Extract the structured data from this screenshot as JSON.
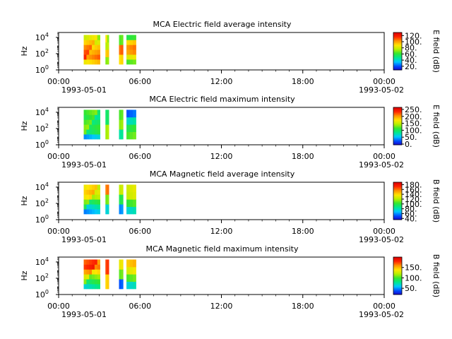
{
  "time_ticks": [
    "00:00",
    "06:00",
    "12:00",
    "18:00",
    "00:00"
  ],
  "date_start": "1993-05-01",
  "date_end": "1993-05-02",
  "colormap": [
    "#1a00c8",
    "#0050ff",
    "#00c8ff",
    "#00e890",
    "#32e632",
    "#b4f000",
    "#ffe600",
    "#ff9600",
    "#ff2800",
    "#dc0000"
  ],
  "chart_data": [
    {
      "type": "heatmap",
      "title": "MCA  Electric field average intensity",
      "ylabel": "Hz",
      "xlim": [
        "00:00",
        "24:00"
      ],
      "ylim": [
        1,
        40000
      ],
      "yscale": "log",
      "yticks": [
        "10^0",
        "10^2",
        "10^4"
      ],
      "colorbar_label": "E field (dB)",
      "colorbar_ticks": [
        "20.",
        "40.",
        "60.",
        "80.",
        "100.",
        "120."
      ],
      "zlim": [
        8,
        130
      ],
      "data_intervals_hours": [
        [
          1.85,
          3.05
        ],
        [
          3.45,
          3.7
        ],
        [
          4.45,
          4.75
        ],
        [
          5.0,
          5.7
        ]
      ],
      "freq_range_hz": [
        5,
        20000
      ],
      "approx_levels_db": [
        [
          95,
          110,
          105,
          100,
          90,
          80
        ],
        [
          75,
          100,
          85,
          80
        ],
        [
          90,
          110,
          70
        ],
        [
          60,
          80,
          100,
          105,
          95,
          65
        ]
      ]
    },
    {
      "type": "heatmap",
      "title": "MCA  Electric field maximum intensity",
      "ylabel": "Hz",
      "xlim": [
        "00:00",
        "24:00"
      ],
      "ylim": [
        1,
        40000
      ],
      "yscale": "log",
      "yticks": [
        "10^0",
        "10^2",
        "10^4"
      ],
      "colorbar_label": "E field (dB)",
      "colorbar_ticks": [
        "0.",
        "50.",
        "100.",
        "150.",
        "200.",
        "250."
      ],
      "zlim": [
        -5,
        265
      ],
      "data_intervals_hours": [
        [
          1.85,
          3.05
        ],
        [
          3.45,
          3.7
        ],
        [
          4.45,
          4.75
        ],
        [
          5.0,
          5.7
        ]
      ],
      "freq_range_hz": [
        5,
        20000
      ],
      "approx_levels_db": [
        [
          60,
          110,
          120,
          110,
          100,
          115
        ],
        [
          150,
          110
        ],
        [
          80,
          140,
          130
        ],
        [
          110,
          100,
          70,
          30
        ]
      ]
    },
    {
      "type": "heatmap",
      "title": "MCA  Magnetic field average intensity",
      "ylabel": "Hz",
      "xlim": [
        "00:00",
        "24:00"
      ],
      "ylim": [
        1,
        40000
      ],
      "yscale": "log",
      "yticks": [
        "10^0",
        "10^2",
        "10^4"
      ],
      "colorbar_label": "B field (dB)",
      "colorbar_ticks": [
        "40.",
        "60.",
        "80.",
        "100.",
        "120.",
        "140.",
        "160.",
        "180."
      ],
      "zlim": [
        35,
        190
      ],
      "data_intervals_hours": [
        [
          1.85,
          3.05
        ],
        [
          3.45,
          3.7
        ],
        [
          4.45,
          4.75
        ],
        [
          5.0,
          5.7
        ]
      ],
      "freq_range_hz": [
        5,
        20000
      ],
      "approx_levels_db": [
        [
          70,
          85,
          105,
          130,
          140,
          135
        ],
        [
          80,
          120,
          170
        ],
        [
          60,
          100,
          130
        ],
        [
          70,
          100,
          125,
          130
        ]
      ]
    },
    {
      "type": "heatmap",
      "title": "MCA  Magnetic field maximum intensity",
      "ylabel": "Hz",
      "xlim": [
        "00:00",
        "24:00"
      ],
      "ylim": [
        1,
        40000
      ],
      "yscale": "log",
      "yticks": [
        "10^0",
        "10^2",
        "10^4"
      ],
      "colorbar_label": "B field (dB)",
      "colorbar_ticks": [
        "50.",
        "100.",
        "150."
      ],
      "zlim": [
        20,
        200
      ],
      "data_intervals_hours": [
        [
          1.85,
          3.05
        ],
        [
          3.45,
          3.7
        ],
        [
          4.45,
          4.75
        ],
        [
          5.0,
          5.7
        ]
      ],
      "freq_range_hz": [
        5,
        20000
      ],
      "approx_levels_db": [
        [
          80,
          100,
          120,
          150,
          175,
          170
        ],
        [
          150,
          185
        ],
        [
          40,
          110,
          140
        ],
        [
          60,
          100,
          130,
          150
        ]
      ]
    }
  ]
}
